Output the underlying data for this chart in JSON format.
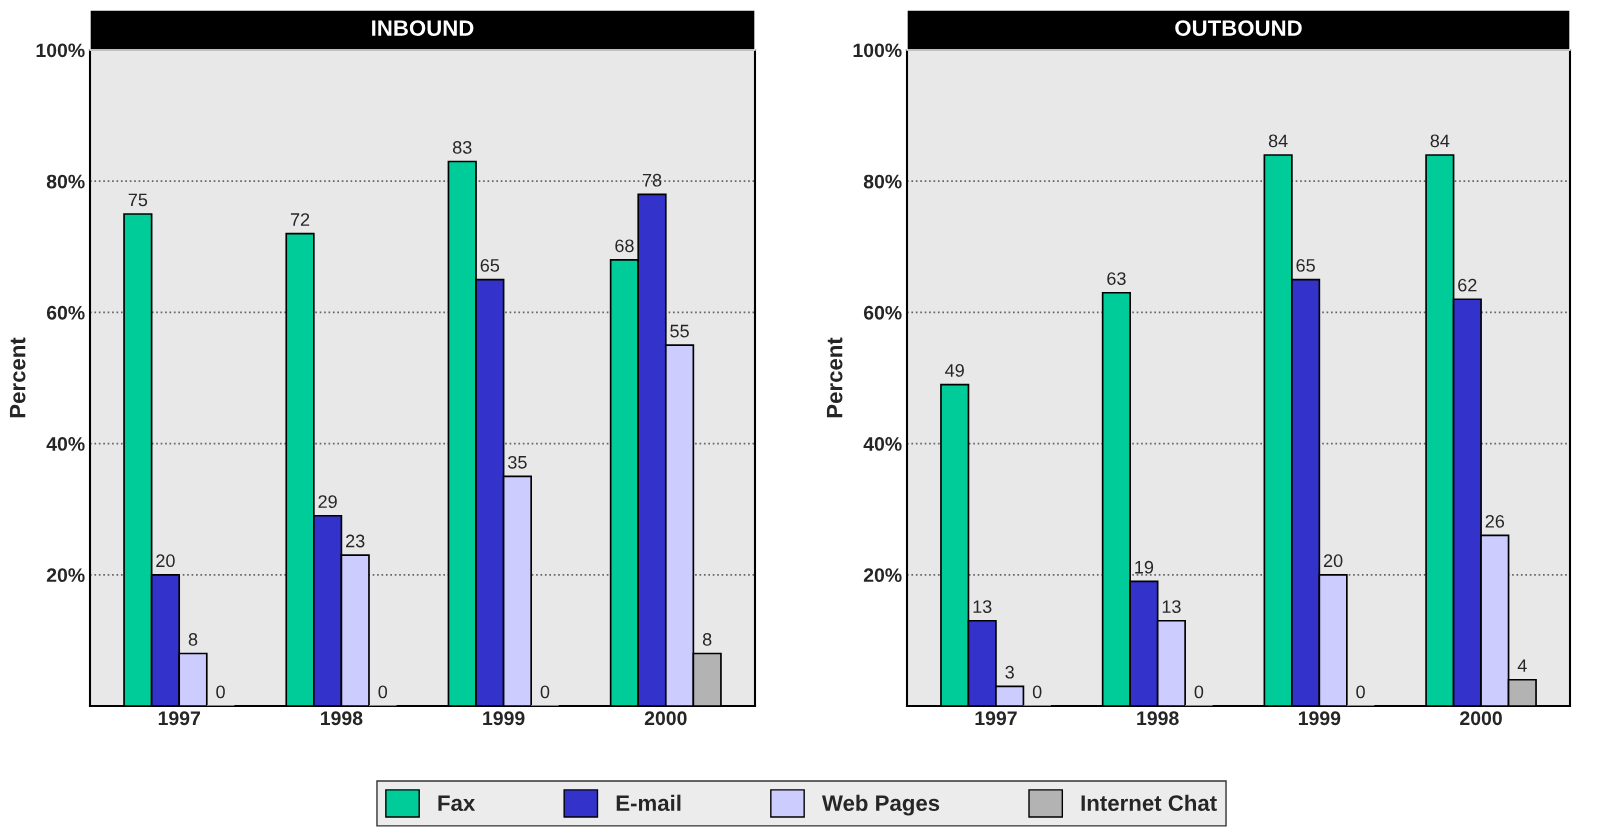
{
  "chart_data": [
    {
      "type": "bar",
      "title": "INBOUND",
      "ylabel": "Percent",
      "categories": [
        "1997",
        "1998",
        "1999",
        "2000"
      ],
      "series": [
        {
          "name": "Fax",
          "color": "#00cc99",
          "values": [
            75,
            72,
            83,
            68
          ]
        },
        {
          "name": "E-mail",
          "color": "#3333cc",
          "values": [
            20,
            29,
            65,
            78
          ]
        },
        {
          "name": "Web Pages",
          "color": "#ccccff",
          "values": [
            8,
            23,
            35,
            55
          ]
        },
        {
          "name": "Internet Chat",
          "color": "#b3b3b3",
          "values": [
            0,
            0,
            0,
            8
          ]
        }
      ],
      "ylim": [
        0,
        100
      ],
      "yticks": [
        {
          "value": 20,
          "label": "20%"
        },
        {
          "value": 40,
          "label": "40%"
        },
        {
          "value": 60,
          "label": "60%"
        },
        {
          "value": 80,
          "label": "80%"
        },
        {
          "value": 100,
          "label": "100%"
        }
      ],
      "grid": "y",
      "data_labels": true,
      "legend": "bottom"
    },
    {
      "type": "bar",
      "title": "OUTBOUND",
      "ylabel": "Percent",
      "categories": [
        "1997",
        "1998",
        "1999",
        "2000"
      ],
      "series": [
        {
          "name": "Fax",
          "color": "#00cc99",
          "values": [
            49,
            63,
            84,
            84
          ]
        },
        {
          "name": "E-mail",
          "color": "#3333cc",
          "values": [
            13,
            19,
            65,
            62
          ]
        },
        {
          "name": "Web Pages",
          "color": "#ccccff",
          "values": [
            3,
            13,
            20,
            26
          ]
        },
        {
          "name": "Internet Chat",
          "color": "#b3b3b3",
          "values": [
            0,
            0,
            0,
            4
          ]
        }
      ],
      "ylim": [
        0,
        100
      ],
      "yticks": [
        {
          "value": 20,
          "label": "20%"
        },
        {
          "value": 40,
          "label": "40%"
        },
        {
          "value": 60,
          "label": "60%"
        },
        {
          "value": 80,
          "label": "80%"
        },
        {
          "value": 100,
          "label": "100%"
        }
      ],
      "grid": "y",
      "data_labels": true
    }
  ]
}
